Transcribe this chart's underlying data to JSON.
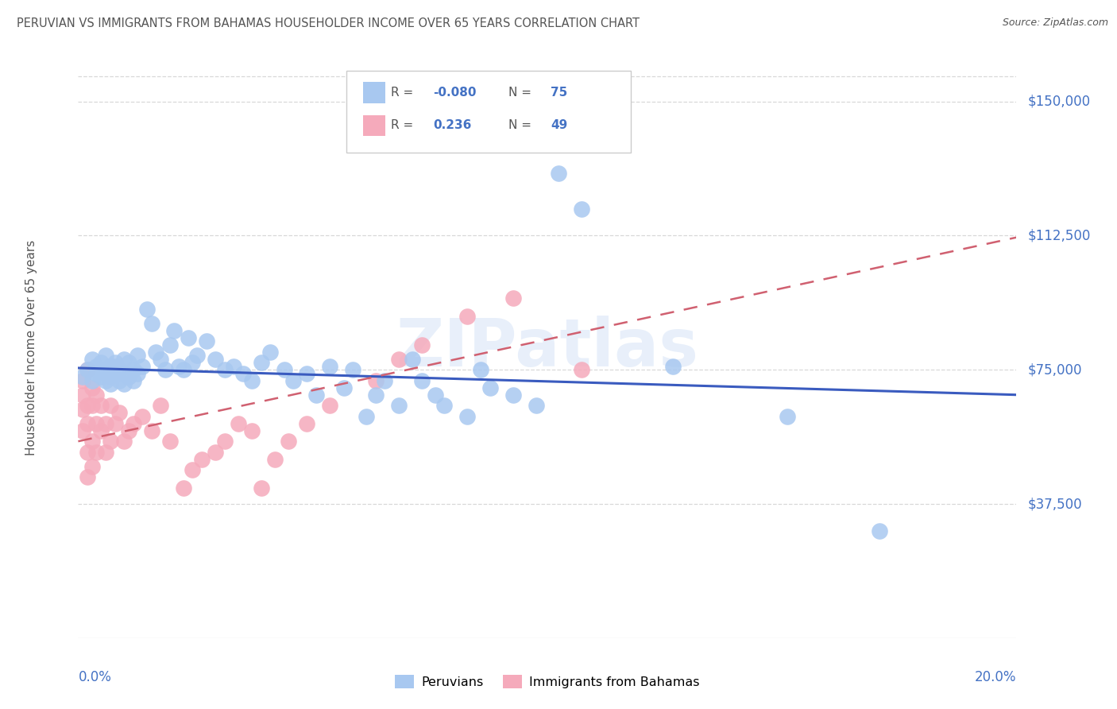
{
  "title": "PERUVIAN VS IMMIGRANTS FROM BAHAMAS HOUSEHOLDER INCOME OVER 65 YEARS CORRELATION CHART",
  "source": "Source: ZipAtlas.com",
  "ylabel": "Householder Income Over 65 years",
  "ytick_labels": [
    "$37,500",
    "$75,000",
    "$112,500",
    "$150,000"
  ],
  "ytick_values": [
    37500,
    75000,
    112500,
    150000
  ],
  "ymin": 0,
  "ymax": 162500,
  "xmin": 0.0,
  "xmax": 0.205,
  "watermark": "ZIPatlas",
  "legend_r_blue": "-0.080",
  "legend_n_blue": "75",
  "legend_r_pink": "0.236",
  "legend_n_pink": "49",
  "blue_color": "#a8c8f0",
  "pink_color": "#f5aabb",
  "line_blue_color": "#3a5bbf",
  "line_pink_color": "#d06070",
  "text_color": "#555555",
  "axis_blue": "#4472C4",
  "grid_color": "#d8d8d8",
  "peruvians_x": [
    0.001,
    0.002,
    0.003,
    0.003,
    0.004,
    0.004,
    0.005,
    0.005,
    0.005,
    0.006,
    0.006,
    0.006,
    0.007,
    0.007,
    0.007,
    0.008,
    0.008,
    0.008,
    0.009,
    0.009,
    0.01,
    0.01,
    0.01,
    0.011,
    0.011,
    0.012,
    0.012,
    0.013,
    0.013,
    0.014,
    0.015,
    0.016,
    0.017,
    0.018,
    0.019,
    0.02,
    0.021,
    0.022,
    0.023,
    0.024,
    0.025,
    0.026,
    0.028,
    0.03,
    0.032,
    0.034,
    0.036,
    0.038,
    0.04,
    0.042,
    0.045,
    0.047,
    0.05,
    0.052,
    0.055,
    0.058,
    0.06,
    0.063,
    0.065,
    0.067,
    0.07,
    0.073,
    0.075,
    0.078,
    0.08,
    0.085,
    0.088,
    0.09,
    0.095,
    0.1,
    0.105,
    0.11,
    0.13,
    0.155,
    0.175
  ],
  "peruvians_y": [
    73000,
    75000,
    72000,
    78000,
    74000,
    76000,
    73000,
    77000,
    75000,
    74000,
    72000,
    79000,
    76000,
    73000,
    71000,
    77000,
    74000,
    76000,
    75000,
    72000,
    78000,
    74000,
    71000,
    77000,
    73000,
    75000,
    72000,
    79000,
    74000,
    76000,
    92000,
    88000,
    80000,
    78000,
    75000,
    82000,
    86000,
    76000,
    75000,
    84000,
    77000,
    79000,
    83000,
    78000,
    75000,
    76000,
    74000,
    72000,
    77000,
    80000,
    75000,
    72000,
    74000,
    68000,
    76000,
    70000,
    75000,
    62000,
    68000,
    72000,
    65000,
    78000,
    72000,
    68000,
    65000,
    62000,
    75000,
    70000,
    68000,
    65000,
    130000,
    120000,
    76000,
    62000,
    30000
  ],
  "bahamas_x": [
    0.001,
    0.001,
    0.001,
    0.001,
    0.002,
    0.002,
    0.002,
    0.002,
    0.002,
    0.003,
    0.003,
    0.003,
    0.003,
    0.004,
    0.004,
    0.004,
    0.005,
    0.005,
    0.006,
    0.006,
    0.007,
    0.007,
    0.008,
    0.009,
    0.01,
    0.011,
    0.012,
    0.014,
    0.016,
    0.018,
    0.02,
    0.023,
    0.025,
    0.027,
    0.03,
    0.032,
    0.035,
    0.038,
    0.04,
    0.043,
    0.046,
    0.05,
    0.055,
    0.065,
    0.07,
    0.075,
    0.085,
    0.095,
    0.11
  ],
  "bahamas_y": [
    72000,
    68000,
    64000,
    58000,
    75000,
    65000,
    60000,
    52000,
    45000,
    70000,
    65000,
    55000,
    48000,
    68000,
    60000,
    52000,
    65000,
    58000,
    60000,
    52000,
    65000,
    55000,
    60000,
    63000,
    55000,
    58000,
    60000,
    62000,
    58000,
    65000,
    55000,
    42000,
    47000,
    50000,
    52000,
    55000,
    60000,
    58000,
    42000,
    50000,
    55000,
    60000,
    65000,
    72000,
    78000,
    82000,
    90000,
    95000,
    75000
  ]
}
